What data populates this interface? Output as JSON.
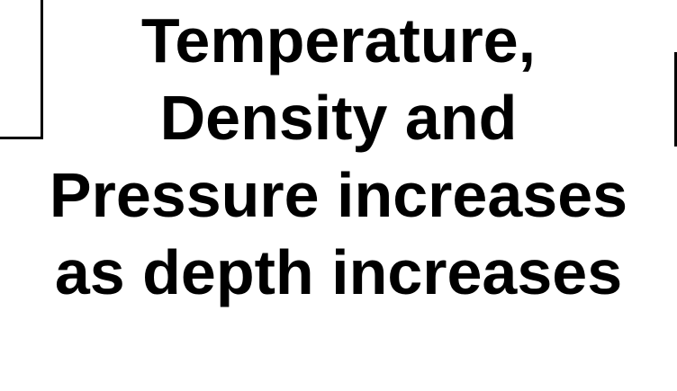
{
  "caption": {
    "lines": [
      "Temperature,",
      "Density and",
      "Pressure increases",
      "as depth increases"
    ]
  },
  "colors": {
    "text": "#000000",
    "background": "#ffffff",
    "border": "#000000"
  }
}
